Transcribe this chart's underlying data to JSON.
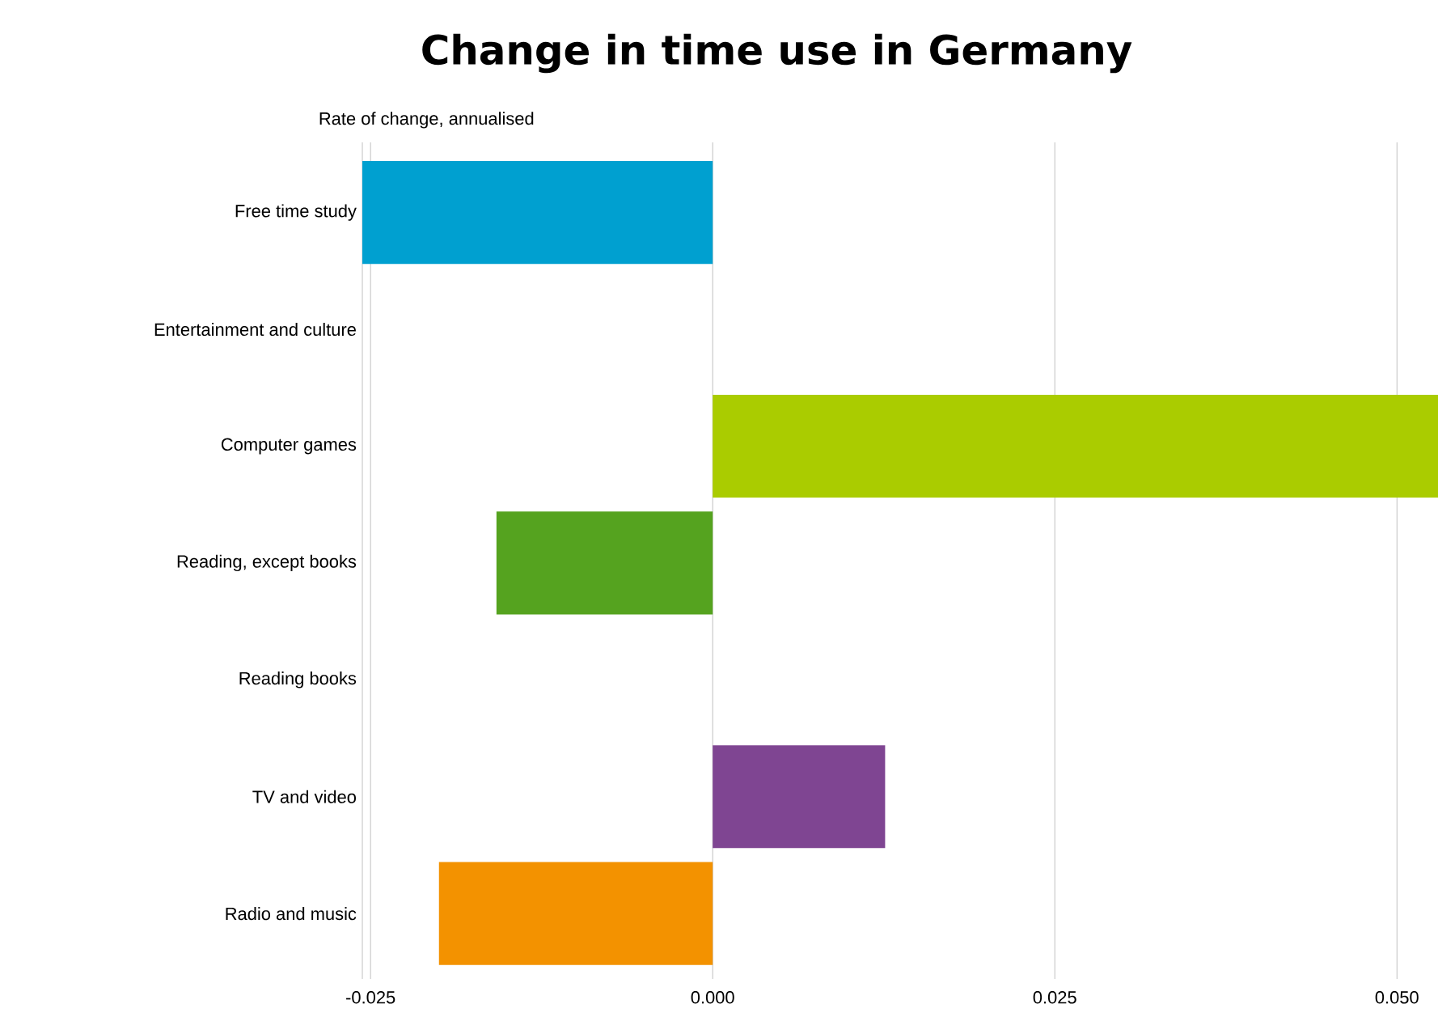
{
  "chart_data": {
    "type": "bar",
    "orientation": "horizontal",
    "title": "Change in time use in Germany",
    "xlabel": "Rate of change, annualised",
    "categories": [
      "Free time study",
      "Entertainment and culture",
      "Computer games",
      "Reading, except books",
      "Reading books",
      "TV and video",
      "Radio and music"
    ],
    "values": [
      -0.0256,
      null,
      0.053,
      -0.0158,
      null,
      0.0126,
      -0.02
    ],
    "colors": [
      "#00a0d0",
      null,
      "#aacc00",
      "#55a31f",
      null,
      "#7f4592",
      "#f39200"
    ],
    "xlim": [
      -0.0256,
      0.053
    ],
    "xticks": [
      {
        "value": -0.025,
        "label": "-0.025"
      },
      {
        "value": 0,
        "label": "0.000"
      },
      {
        "value": 0.025,
        "label": "0.025"
      },
      {
        "value": 0.05,
        "label": "0.050"
      }
    ],
    "grid": "x"
  }
}
